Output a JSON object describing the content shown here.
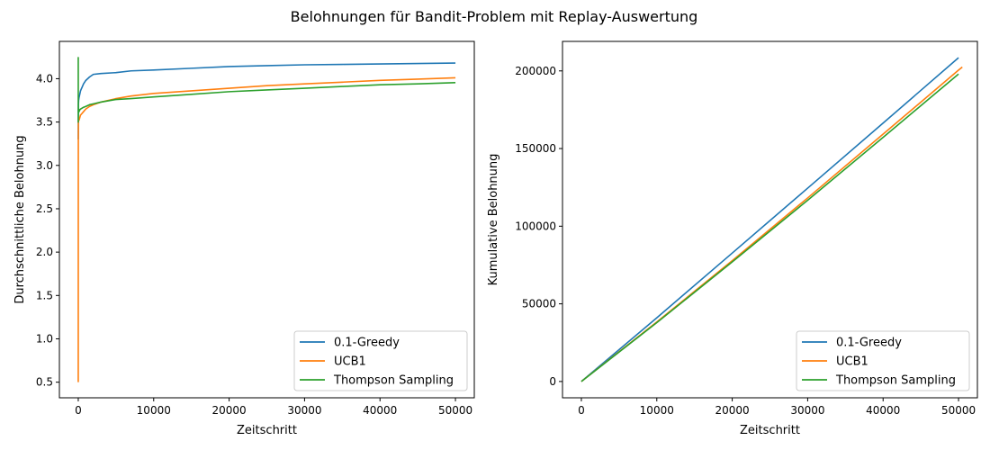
{
  "figure": {
    "title": "Belohnungen für Bandit-Problem mit Replay-Auswertung"
  },
  "chart_data": [
    {
      "type": "line",
      "title": "",
      "xlabel": "Zeitschritt",
      "ylabel": "Durchschnittliche Belohnung",
      "xlim": [
        -2500,
        52500
      ],
      "ylim": [
        0.32,
        4.43
      ],
      "xticks": [
        0,
        10000,
        20000,
        30000,
        40000,
        50000
      ],
      "xtick_labels": [
        "0",
        "10000",
        "20000",
        "30000",
        "40000",
        "50000"
      ],
      "yticks": [
        0.5,
        1.0,
        1.5,
        2.0,
        2.5,
        3.0,
        3.5,
        4.0
      ],
      "ytick_labels": [
        "0.5",
        "1.0",
        "1.5",
        "2.0",
        "2.5",
        "3.0",
        "3.5",
        "4.0"
      ],
      "grid": false,
      "legend": "lower right",
      "series": [
        {
          "name": "0.1-Greedy",
          "color": "#1f77b4",
          "x": [
            0,
            20,
            50,
            100,
            150,
            200,
            300,
            400,
            500,
            700,
            1000,
            1500,
            2000,
            3000,
            5000,
            7000,
            10000,
            15000,
            20000,
            25000,
            30000,
            35000,
            40000,
            45000,
            50000
          ],
          "y": [
            3.3,
            3.7,
            3.75,
            3.78,
            3.8,
            3.82,
            3.86,
            3.88,
            3.9,
            3.94,
            3.98,
            4.02,
            4.05,
            4.06,
            4.07,
            4.09,
            4.1,
            4.12,
            4.14,
            4.15,
            4.16,
            4.165,
            4.17,
            4.175,
            4.18
          ]
        },
        {
          "name": "UCB1",
          "color": "#ff7f0e",
          "x": [
            0,
            5,
            10,
            20,
            50,
            100,
            200,
            300,
            500,
            700,
            1000,
            1500,
            2000,
            3000,
            5000,
            7000,
            10000,
            15000,
            20000,
            25000,
            30000,
            35000,
            40000,
            45000,
            50000
          ],
          "y": [
            0.5,
            2.8,
            3.3,
            3.5,
            3.55,
            3.52,
            3.55,
            3.58,
            3.6,
            3.62,
            3.65,
            3.68,
            3.7,
            3.73,
            3.77,
            3.8,
            3.83,
            3.86,
            3.89,
            3.92,
            3.94,
            3.96,
            3.98,
            3.995,
            4.01
          ]
        },
        {
          "name": "Thompson Sampling",
          "color": "#2ca02c",
          "x": [
            0,
            5,
            10,
            20,
            50,
            100,
            200,
            300,
            500,
            700,
            1000,
            1500,
            2000,
            3000,
            5000,
            7000,
            10000,
            15000,
            20000,
            25000,
            30000,
            35000,
            40000,
            45000,
            50000
          ],
          "y": [
            4.25,
            3.5,
            3.7,
            3.6,
            3.65,
            3.62,
            3.64,
            3.65,
            3.66,
            3.67,
            3.68,
            3.7,
            3.71,
            3.73,
            3.76,
            3.77,
            3.79,
            3.82,
            3.85,
            3.87,
            3.89,
            3.91,
            3.93,
            3.94,
            3.955
          ]
        }
      ]
    },
    {
      "type": "line",
      "title": "",
      "xlabel": "Zeitschritt",
      "ylabel": "Kumulative Belohnung",
      "xlim": [
        -2500,
        52500
      ],
      "ylim": [
        -10500,
        219000
      ],
      "xticks": [
        0,
        10000,
        20000,
        30000,
        40000,
        50000
      ],
      "xtick_labels": [
        "0",
        "10000",
        "20000",
        "30000",
        "40000",
        "50000"
      ],
      "yticks": [
        0,
        50000,
        100000,
        150000,
        200000
      ],
      "ytick_labels": [
        "0",
        "50000",
        "100000",
        "150000",
        "200000"
      ],
      "grid": false,
      "legend": "lower right",
      "series": [
        {
          "name": "0.1-Greedy",
          "color": "#1f77b4",
          "x": [
            0,
            10000,
            20000,
            30000,
            40000,
            50000
          ],
          "y": [
            0,
            41000,
            82700,
            124500,
            166400,
            208500
          ]
        },
        {
          "name": "UCB1",
          "color": "#ff7f0e",
          "x": [
            0,
            10000,
            20000,
            30000,
            40000,
            50000,
            50500
          ],
          "y": [
            0,
            38300,
            77800,
            118200,
            159300,
            200500,
            202500
          ]
        },
        {
          "name": "Thompson Sampling",
          "color": "#2ca02c",
          "x": [
            0,
            10000,
            20000,
            30000,
            40000,
            50000
          ],
          "y": [
            0,
            37900,
            77000,
            116700,
            157200,
            198000
          ]
        }
      ]
    }
  ]
}
